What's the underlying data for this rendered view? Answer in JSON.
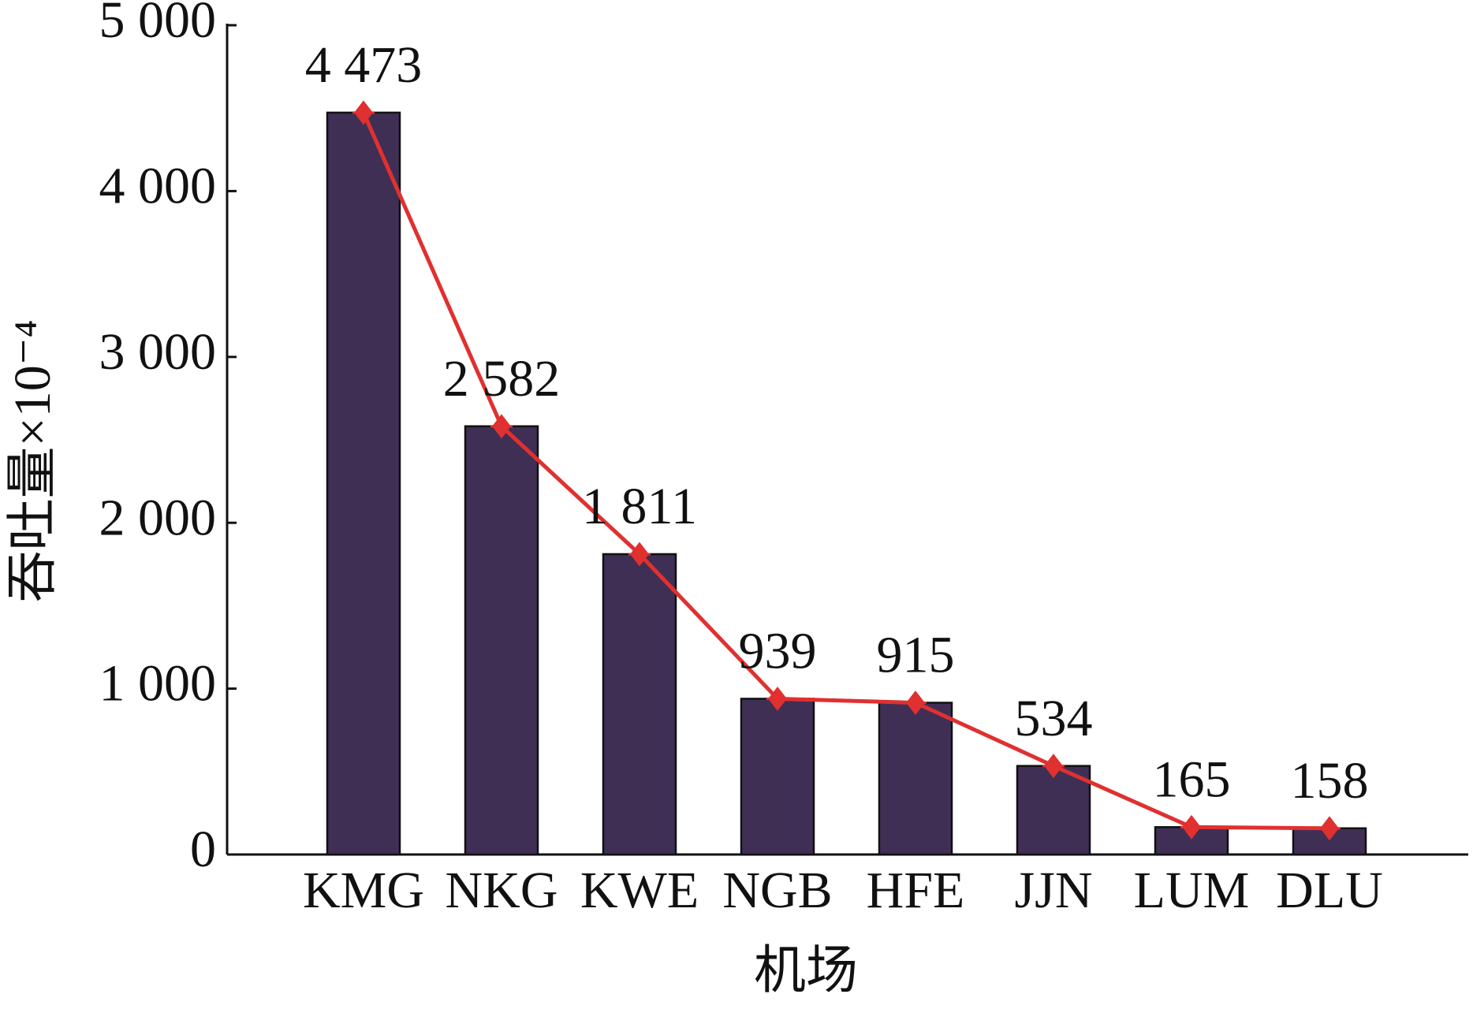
{
  "chart_data": {
    "type": "bar",
    "y_label": "吞吐量×10⁻⁴",
    "x_label": "机场",
    "categories": [
      "KMG",
      "NKG",
      "KWE",
      "NGB",
      "HFE",
      "JJN",
      "LUM",
      "DLU"
    ],
    "values": [
      4473,
      2582,
      1811,
      939,
      915,
      534,
      165,
      158
    ],
    "value_labels": [
      "4 473",
      "2 582",
      "1 811",
      "939",
      "915",
      "534",
      "165",
      "158"
    ],
    "color": "#3f2f55",
    "line_color": "#e03030",
    "ylim": [
      0,
      5000
    ],
    "yticks": [
      0,
      {
        "value": 1000,
        "label": "1 000"
      },
      {
        "value": 2000,
        "label": "2 000"
      },
      {
        "value": 3000,
        "label": "3 000"
      },
      {
        "value": 4000,
        "label": "4 000"
      },
      {
        "value": 5000,
        "label": "5 000"
      }
    ],
    "grid": false
  }
}
